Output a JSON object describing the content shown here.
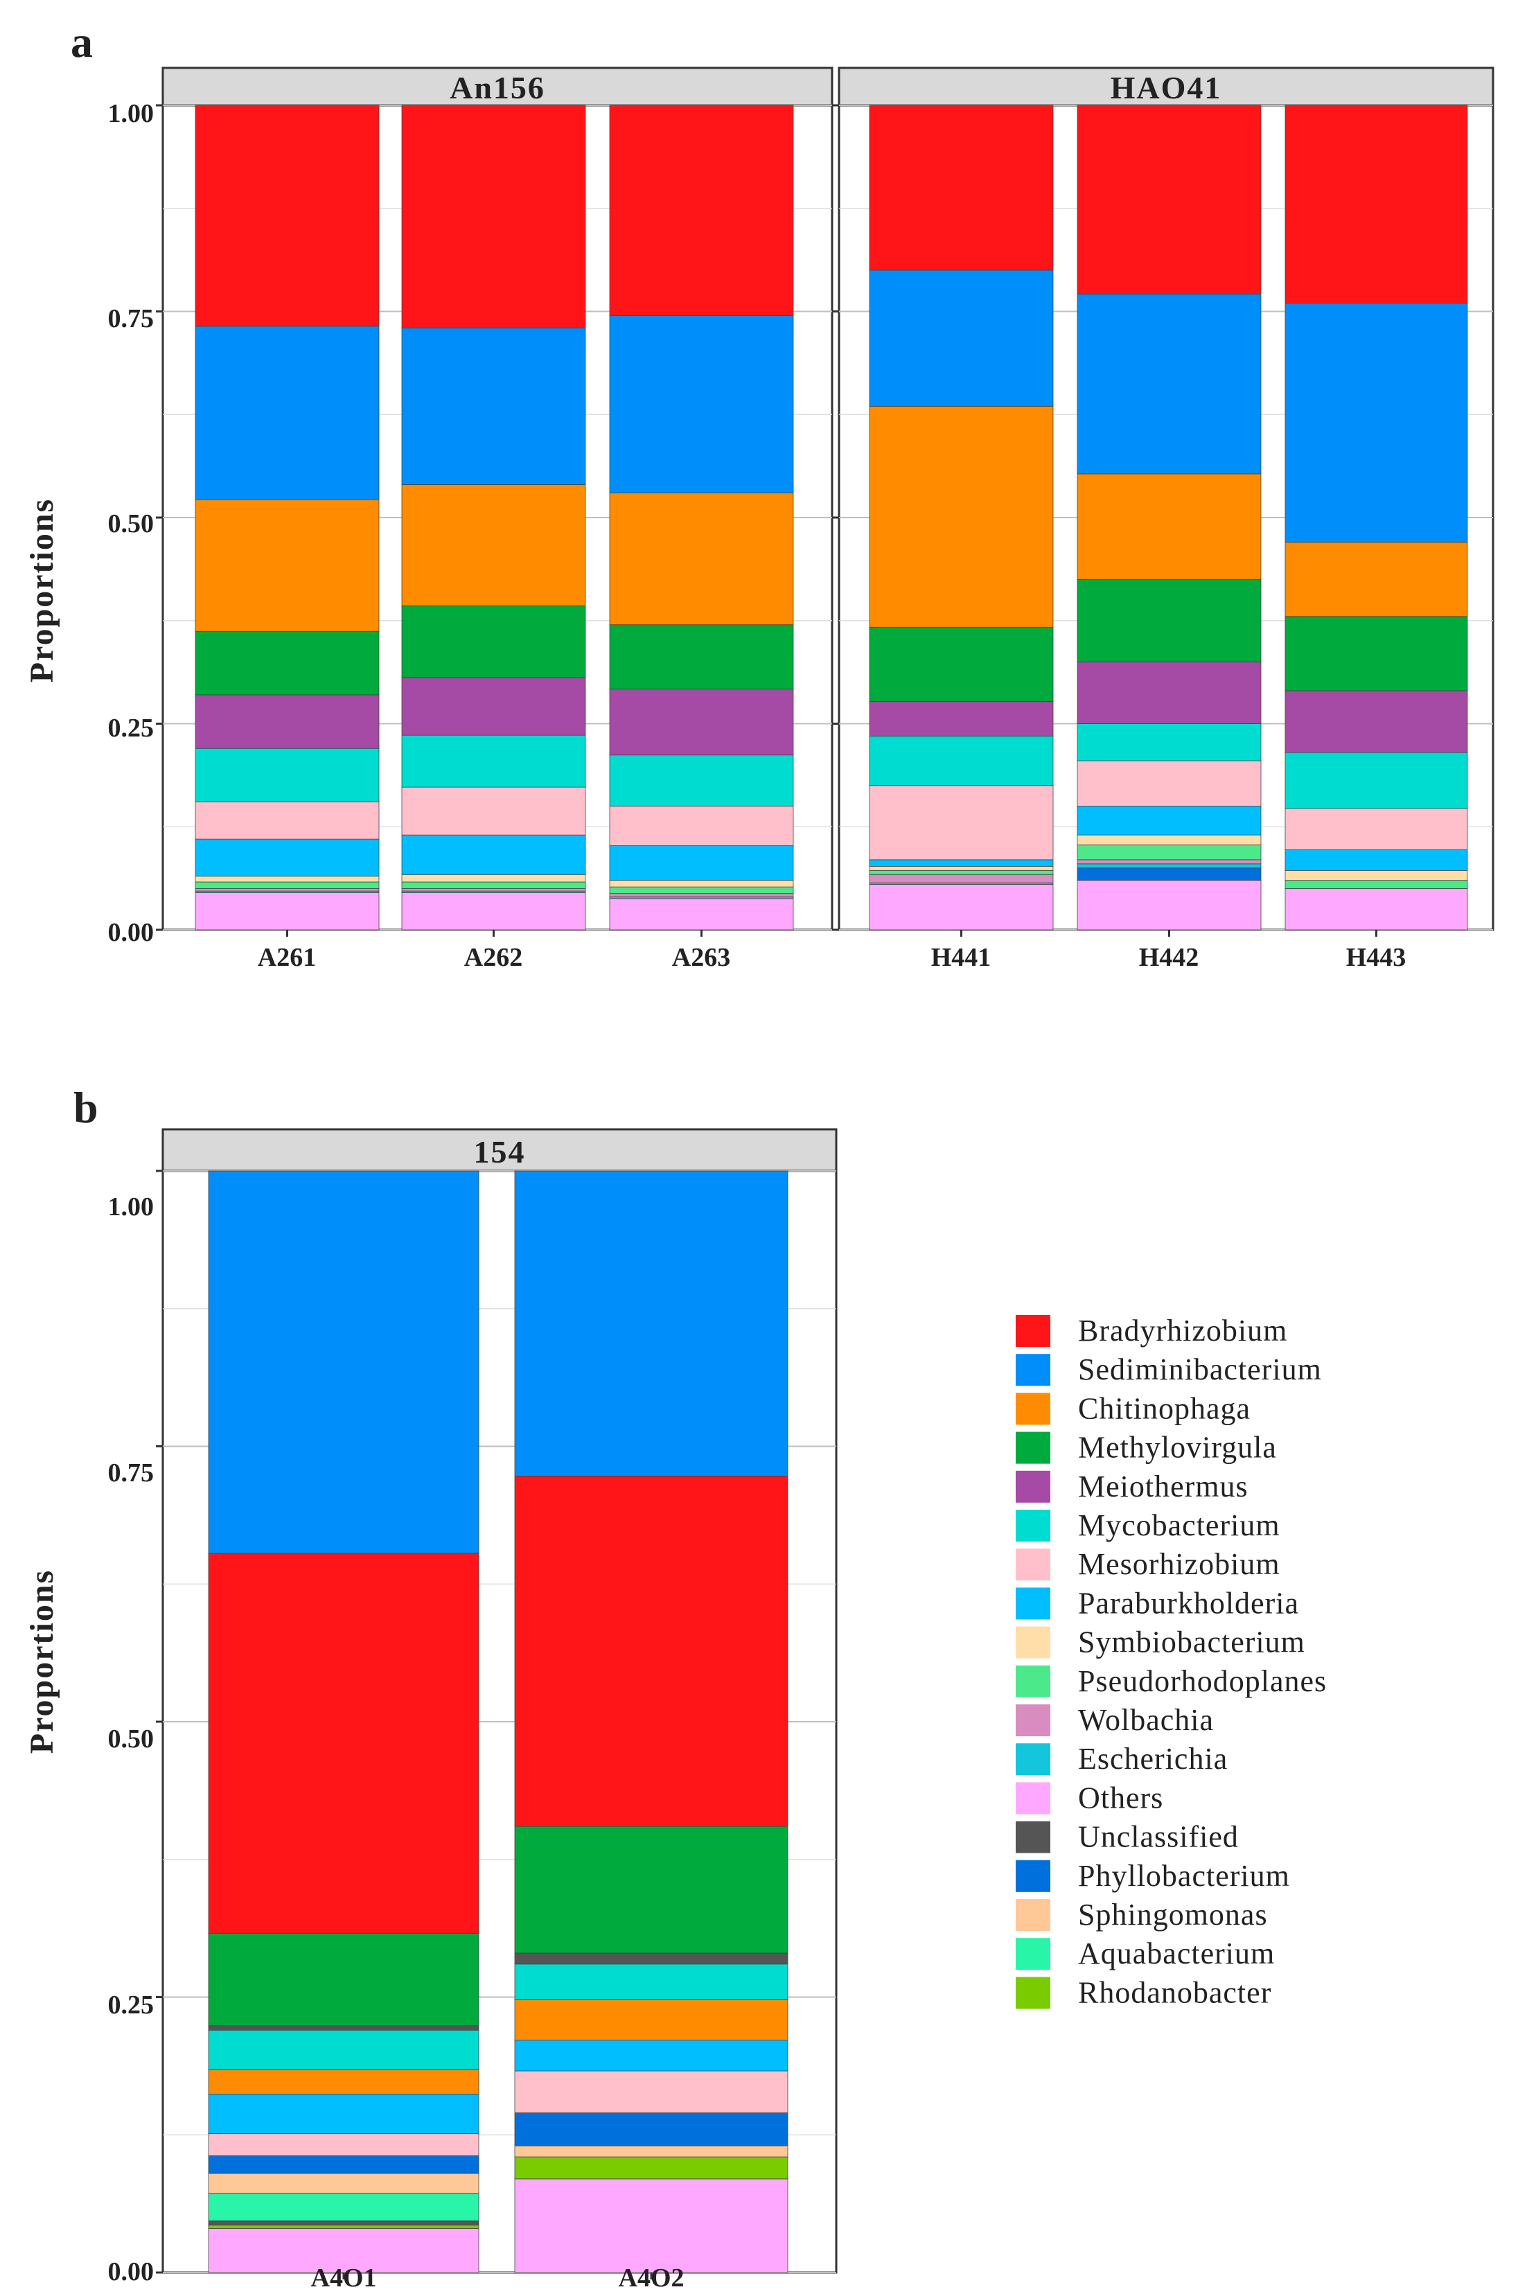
{
  "colors": {
    "Bradyrhizobium": "#FF1518",
    "Sediminibacterium": "#008FFA",
    "Chitinophaga": "#FF8C00",
    "Methylovirgula": "#00AA3D",
    "Meiothermus": "#A54AA5",
    "Mycobacterium": "#00DCCF",
    "Mesorhizobium": "#FFC0CB",
    "Paraburkholderia": "#00BEFF",
    "Symbiobacterium": "#FFDEAA",
    "Pseudorhodoplanes": "#4CE98A",
    "Wolbachia": "#D98CC0",
    "Escherichia": "#14C6DC",
    "Others": "#FFA8FF",
    "Unclassified": "#555555",
    "Phyllobacterium": "#0070DC",
    "Sphingomonas": "#FFC896",
    "Aquabacterium": "#28F5A8",
    "Rhodanobacter": "#7ACB00"
  },
  "chart_data": [
    {
      "type": "bar",
      "stacked": true,
      "panel_label": "a",
      "ylabel": "Proportions",
      "ylim": [
        0,
        1
      ],
      "yticks": [
        "0.00",
        "0.25",
        "0.50",
        "0.75",
        "1.00"
      ],
      "facets": [
        {
          "title": "An156",
          "samples": [
            {
              "name": "A261",
              "stack": [
                [
                  "Others",
                  0.045
                ],
                [
                  "Escherichia",
                  0.002
                ],
                [
                  "Wolbachia",
                  0.003
                ],
                [
                  "Pseudorhodoplanes",
                  0.008
                ],
                [
                  "Symbiobacterium",
                  0.007
                ],
                [
                  "Paraburkholderia",
                  0.045
                ],
                [
                  "Mesorhizobium",
                  0.045
                ],
                [
                  "Mycobacterium",
                  0.065
                ],
                [
                  "Meiothermus",
                  0.065
                ],
                [
                  "Methylovirgula",
                  0.077
                ],
                [
                  "Chitinophaga",
                  0.16
                ],
                [
                  "Sediminibacterium",
                  0.21
                ],
                [
                  "Bradyrhizobium",
                  0.268
                ]
              ]
            },
            {
              "name": "A262",
              "stack": [
                [
                  "Others",
                  0.045
                ],
                [
                  "Escherichia",
                  0.002
                ],
                [
                  "Wolbachia",
                  0.003
                ],
                [
                  "Pseudorhodoplanes",
                  0.008
                ],
                [
                  "Symbiobacterium",
                  0.009
                ],
                [
                  "Paraburkholderia",
                  0.048
                ],
                [
                  "Mesorhizobium",
                  0.058
                ],
                [
                  "Mycobacterium",
                  0.063
                ],
                [
                  "Meiothermus",
                  0.07
                ],
                [
                  "Methylovirgula",
                  0.087
                ],
                [
                  "Chitinophaga",
                  0.147
                ],
                [
                  "Sediminibacterium",
                  0.19
                ],
                [
                  "Bradyrhizobium",
                  0.27
                ]
              ]
            },
            {
              "name": "A263",
              "stack": [
                [
                  "Others",
                  0.038
                ],
                [
                  "Escherichia",
                  0.002
                ],
                [
                  "Wolbachia",
                  0.004
                ],
                [
                  "Pseudorhodoplanes",
                  0.008
                ],
                [
                  "Symbiobacterium",
                  0.008
                ],
                [
                  "Paraburkholderia",
                  0.042
                ],
                [
                  "Mesorhizobium",
                  0.048
                ],
                [
                  "Mycobacterium",
                  0.062
                ],
                [
                  "Meiothermus",
                  0.08
                ],
                [
                  "Methylovirgula",
                  0.078
                ],
                [
                  "Chitinophaga",
                  0.16
                ],
                [
                  "Sediminibacterium",
                  0.215
                ],
                [
                  "Bradyrhizobium",
                  0.255
                ]
              ]
            }
          ]
        },
        {
          "title": "HAO41",
          "samples": [
            {
              "name": "H441",
              "stack": [
                [
                  "Others",
                  0.055
                ],
                [
                  "Escherichia",
                  0.002
                ],
                [
                  "Wolbachia",
                  0.01
                ],
                [
                  "Pseudorhodoplanes",
                  0.005
                ],
                [
                  "Symbiobacterium",
                  0.005
                ],
                [
                  "Paraburkholderia",
                  0.008
                ],
                [
                  "Mesorhizobium",
                  0.09
                ],
                [
                  "Mycobacterium",
                  0.06
                ],
                [
                  "Meiothermus",
                  0.042
                ],
                [
                  "Methylovirgula",
                  0.09
                ],
                [
                  "Chitinophaga",
                  0.268
                ],
                [
                  "Sediminibacterium",
                  0.165
                ],
                [
                  "Bradyrhizobium",
                  0.2
                ]
              ]
            },
            {
              "name": "H442",
              "stack": [
                [
                  "Others",
                  0.06
                ],
                [
                  "Phyllobacterium",
                  0.015
                ],
                [
                  "Escherichia",
                  0.005
                ],
                [
                  "Wolbachia",
                  0.005
                ],
                [
                  "Pseudorhodoplanes",
                  0.018
                ],
                [
                  "Symbiobacterium",
                  0.012
                ],
                [
                  "Paraburkholderia",
                  0.035
                ],
                [
                  "Mesorhizobium",
                  0.055
                ],
                [
                  "Mycobacterium",
                  0.045
                ],
                [
                  "Meiothermus",
                  0.075
                ],
                [
                  "Methylovirgula",
                  0.1
                ],
                [
                  "Chitinophaga",
                  0.128
                ],
                [
                  "Sediminibacterium",
                  0.218
                ],
                [
                  "Bradyrhizobium",
                  0.229
                ]
              ]
            },
            {
              "name": "H443",
              "stack": [
                [
                  "Others",
                  0.05
                ],
                [
                  "Pseudorhodoplanes",
                  0.01
                ],
                [
                  "Symbiobacterium",
                  0.012
                ],
                [
                  "Paraburkholderia",
                  0.025
                ],
                [
                  "Mesorhizobium",
                  0.05
                ],
                [
                  "Mycobacterium",
                  0.068
                ],
                [
                  "Meiothermus",
                  0.075
                ],
                [
                  "Methylovirgula",
                  0.09
                ],
                [
                  "Chitinophaga",
                  0.09
                ],
                [
                  "Sediminibacterium",
                  0.29
                ],
                [
                  "Bradyrhizobium",
                  0.24
                ]
              ]
            }
          ]
        }
      ]
    },
    {
      "type": "bar",
      "stacked": true,
      "panel_label": "b",
      "ylabel": "Proportions",
      "ylim": [
        0,
        1
      ],
      "yticks": [
        "0.00",
        "0.25",
        "0.50",
        "0.75",
        "1.00"
      ],
      "facets": [
        {
          "title": "154",
          "samples": [
            {
              "name": "A4O1",
              "stack": [
                [
                  "Others",
                  0.04
                ],
                [
                  "Rhodanobacter",
                  0.003
                ],
                [
                  "Unclassified",
                  0.004
                ],
                [
                  "Aquabacterium",
                  0.025
                ],
                [
                  "Sphingomonas",
                  0.018
                ],
                [
                  "Phyllobacterium",
                  0.016
                ],
                [
                  "Mesorhizobium",
                  0.02
                ],
                [
                  "Paraburkholderia",
                  0.036
                ],
                [
                  "Chitinophaga",
                  0.022
                ],
                [
                  "Mycobacterium",
                  0.036
                ],
                [
                  "Unclassified",
                  0.004
                ],
                [
                  "Methylovirgula",
                  0.084
                ],
                [
                  "Bradyrhizobium",
                  0.345
                ],
                [
                  "Sediminibacterium",
                  0.347
                ]
              ]
            },
            {
              "name": "A4O2",
              "stack": [
                [
                  "Others",
                  0.085
                ],
                [
                  "Rhodanobacter",
                  0.02
                ],
                [
                  "Sphingomonas",
                  0.01
                ],
                [
                  "Phyllobacterium",
                  0.03
                ],
                [
                  "Mesorhizobium",
                  0.038
                ],
                [
                  "Paraburkholderia",
                  0.028
                ],
                [
                  "Chitinophaga",
                  0.037
                ],
                [
                  "Mycobacterium",
                  0.032
                ],
                [
                  "Unclassified",
                  0.01
                ],
                [
                  "Methylovirgula",
                  0.115
                ],
                [
                  "Bradyrhizobium",
                  0.318
                ],
                [
                  "Sediminibacterium",
                  0.277
                ]
              ]
            }
          ]
        }
      ]
    }
  ],
  "legend": {
    "entries": [
      "Bradyrhizobium",
      "Sediminibacterium",
      "Chitinophaga",
      "Methylovirgula",
      "Meiothermus",
      "Mycobacterium",
      "Mesorhizobium",
      "Paraburkholderia",
      "Symbiobacterium",
      "Pseudorhodoplanes",
      "Wolbachia",
      "Escherichia",
      "Others",
      "Unclassified",
      "Phyllobacterium",
      "Sphingomonas",
      "Aquabacterium",
      "Rhodanobacter"
    ]
  }
}
